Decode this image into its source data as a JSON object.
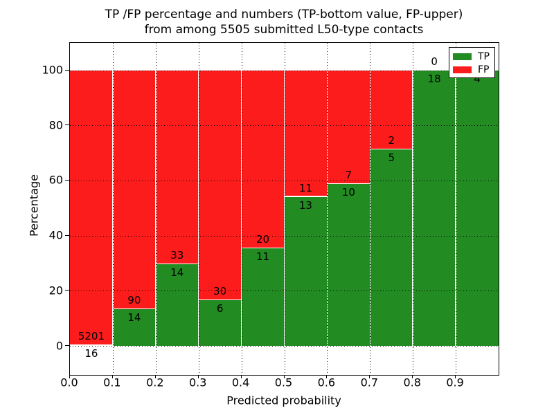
{
  "title": {
    "line1": "TP /FP percentage and numbers (TP-bottom value, FP-upper)",
    "line2": "from among 5505 submitted L50-type contacts"
  },
  "colors": {
    "tp_green": "#228b22",
    "fp_red": "#fd1c1c",
    "text": "#000000",
    "background": "#ffffff",
    "grid": "#000000",
    "bar_edge": "#ffffff"
  },
  "chart_data": {
    "type": "bar",
    "subtype": "stacked-100-percent",
    "title": "TP /FP percentage and numbers (TP-bottom value, FP-upper)\nfrom among 5505 submitted L50-type contacts",
    "xlabel": "Predicted probability",
    "ylabel": "Percentage",
    "total_submitted": 5505,
    "xlim": [
      0.0,
      1.0
    ],
    "ylim": [
      0,
      100
    ],
    "grid": true,
    "x_tick_labels": [
      "0.0",
      "0.1",
      "0.2",
      "0.3",
      "0.4",
      "0.5",
      "0.6",
      "0.7",
      "0.8",
      "0.9"
    ],
    "x_tick_values": [
      0.0,
      0.1,
      0.2,
      0.3,
      0.4,
      0.5,
      0.6,
      0.7,
      0.8,
      0.9
    ],
    "y_tick_labels": [
      "0",
      "20",
      "40",
      "60",
      "80",
      "100"
    ],
    "y_tick_values": [
      0,
      20,
      40,
      60,
      80,
      100
    ],
    "legend": {
      "position": "upper-right",
      "entries": [
        {
          "label": "TP",
          "color": "#228b22"
        },
        {
          "label": "FP",
          "color": "#fd1c1c"
        }
      ]
    },
    "bins": [
      {
        "x_start": 0.0,
        "x_end": 0.1,
        "tp": 16,
        "fp": 5201,
        "tp_pct": 0.31,
        "fp_pct": 99.69
      },
      {
        "x_start": 0.1,
        "x_end": 0.2,
        "tp": 14,
        "fp": 90,
        "tp_pct": 13.46,
        "fp_pct": 86.54
      },
      {
        "x_start": 0.2,
        "x_end": 0.3,
        "tp": 14,
        "fp": 33,
        "tp_pct": 29.79,
        "fp_pct": 70.21
      },
      {
        "x_start": 0.3,
        "x_end": 0.4,
        "tp": 6,
        "fp": 30,
        "tp_pct": 16.67,
        "fp_pct": 83.33
      },
      {
        "x_start": 0.4,
        "x_end": 0.5,
        "tp": 11,
        "fp": 20,
        "tp_pct": 35.48,
        "fp_pct": 64.52
      },
      {
        "x_start": 0.5,
        "x_end": 0.6,
        "tp": 13,
        "fp": 11,
        "tp_pct": 54.17,
        "fp_pct": 45.83
      },
      {
        "x_start": 0.6,
        "x_end": 0.7,
        "tp": 10,
        "fp": 7,
        "tp_pct": 58.82,
        "fp_pct": 41.18
      },
      {
        "x_start": 0.7,
        "x_end": 0.8,
        "tp": 5,
        "fp": 2,
        "tp_pct": 71.43,
        "fp_pct": 28.57
      },
      {
        "x_start": 0.8,
        "x_end": 0.9,
        "tp": 18,
        "fp": 0,
        "tp_pct": 100.0,
        "fp_pct": 0.0
      },
      {
        "x_start": 0.9,
        "x_end": 1.0,
        "tp": 4,
        "fp": 0,
        "tp_pct": 100.0,
        "fp_pct": 0.0
      }
    ]
  }
}
